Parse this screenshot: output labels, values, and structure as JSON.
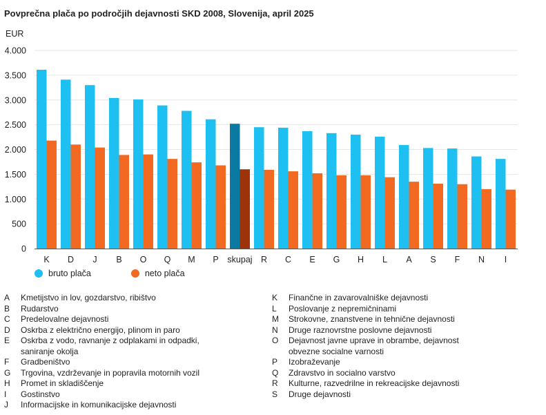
{
  "chart_data": {
    "type": "bar",
    "title": "Povprečna plača po področjih dejavnosti SKD 2008, Slovenija, april 2025",
    "ylabel": "EUR",
    "xlabel": "",
    "ylim": [
      0,
      4000
    ],
    "yticks": [
      0,
      500,
      1000,
      1500,
      2000,
      2500,
      3000,
      3500,
      4000
    ],
    "ytick_labels": [
      "0",
      "500",
      "1.000",
      "1.500",
      "2.000",
      "2.500",
      "3.000",
      "3.500",
      "4.000"
    ],
    "grid": true,
    "highlight_category": "skupaj",
    "categories": [
      "K",
      "D",
      "J",
      "B",
      "O",
      "Q",
      "M",
      "P",
      "skupaj",
      "R",
      "C",
      "E",
      "G",
      "H",
      "L",
      "A",
      "S",
      "F",
      "N",
      "I"
    ],
    "series": [
      {
        "name": "bruto plača",
        "color": "#1ec0f2",
        "highlight_color": "#0a7aa3",
        "values": [
          3610,
          3410,
          3300,
          3040,
          3010,
          2890,
          2780,
          2610,
          2520,
          2450,
          2440,
          2370,
          2330,
          2300,
          2260,
          2090,
          2030,
          2020,
          1860,
          1810
        ]
      },
      {
        "name": "neto plača",
        "color": "#f26a21",
        "highlight_color": "#9c3309",
        "values": [
          2180,
          2100,
          2040,
          1890,
          1900,
          1810,
          1740,
          1680,
          1600,
          1590,
          1560,
          1520,
          1480,
          1480,
          1440,
          1350,
          1310,
          1300,
          1200,
          1190
        ]
      }
    ]
  },
  "notes_left": [
    {
      "code": "A",
      "text": "Kmetijstvo in lov, gozdarstvo, ribištvo"
    },
    {
      "code": "B",
      "text": "Rudarstvo"
    },
    {
      "code": "C",
      "text": "Predelovalne dejavnosti"
    },
    {
      "code": "D",
      "text": "Oskrba z električno energijo, plinom in paro"
    },
    {
      "code": "E",
      "text": "Oskrba z vodo, ravnanje z odplakami in odpadki, saniranje okolja"
    },
    {
      "code": "F",
      "text": "Gradbeništvo"
    },
    {
      "code": "G",
      "text": "Trgovina, vzdrževanje in popravila motornih vozil"
    },
    {
      "code": "H",
      "text": "Promet in skladiščenje"
    },
    {
      "code": "I",
      "text": "Gostinstvo"
    },
    {
      "code": "J",
      "text": "Informacijske in komunikacijske dejavnosti"
    }
  ],
  "notes_right": [
    {
      "code": "K",
      "text": "Finančne in zavarovalniške dejavnosti"
    },
    {
      "code": "L",
      "text": "Poslovanje z nepremičninami"
    },
    {
      "code": "M",
      "text": "Strokovne, znanstvene in tehnične dejavnosti"
    },
    {
      "code": "N",
      "text": "Druge raznovrstne poslovne dejavnosti"
    },
    {
      "code": "O",
      "text": "Dejavnost javne uprave in obrambe, dejavnost obvezne socialne varnosti"
    },
    {
      "code": "P",
      "text": "Izobraževanje"
    },
    {
      "code": "Q",
      "text": "Zdravstvo in socialno varstvo"
    },
    {
      "code": "R",
      "text": "Kulturne, razvedrilne in rekreacijske dejavnosti"
    },
    {
      "code": "S",
      "text": "Druge dejavnosti"
    }
  ]
}
